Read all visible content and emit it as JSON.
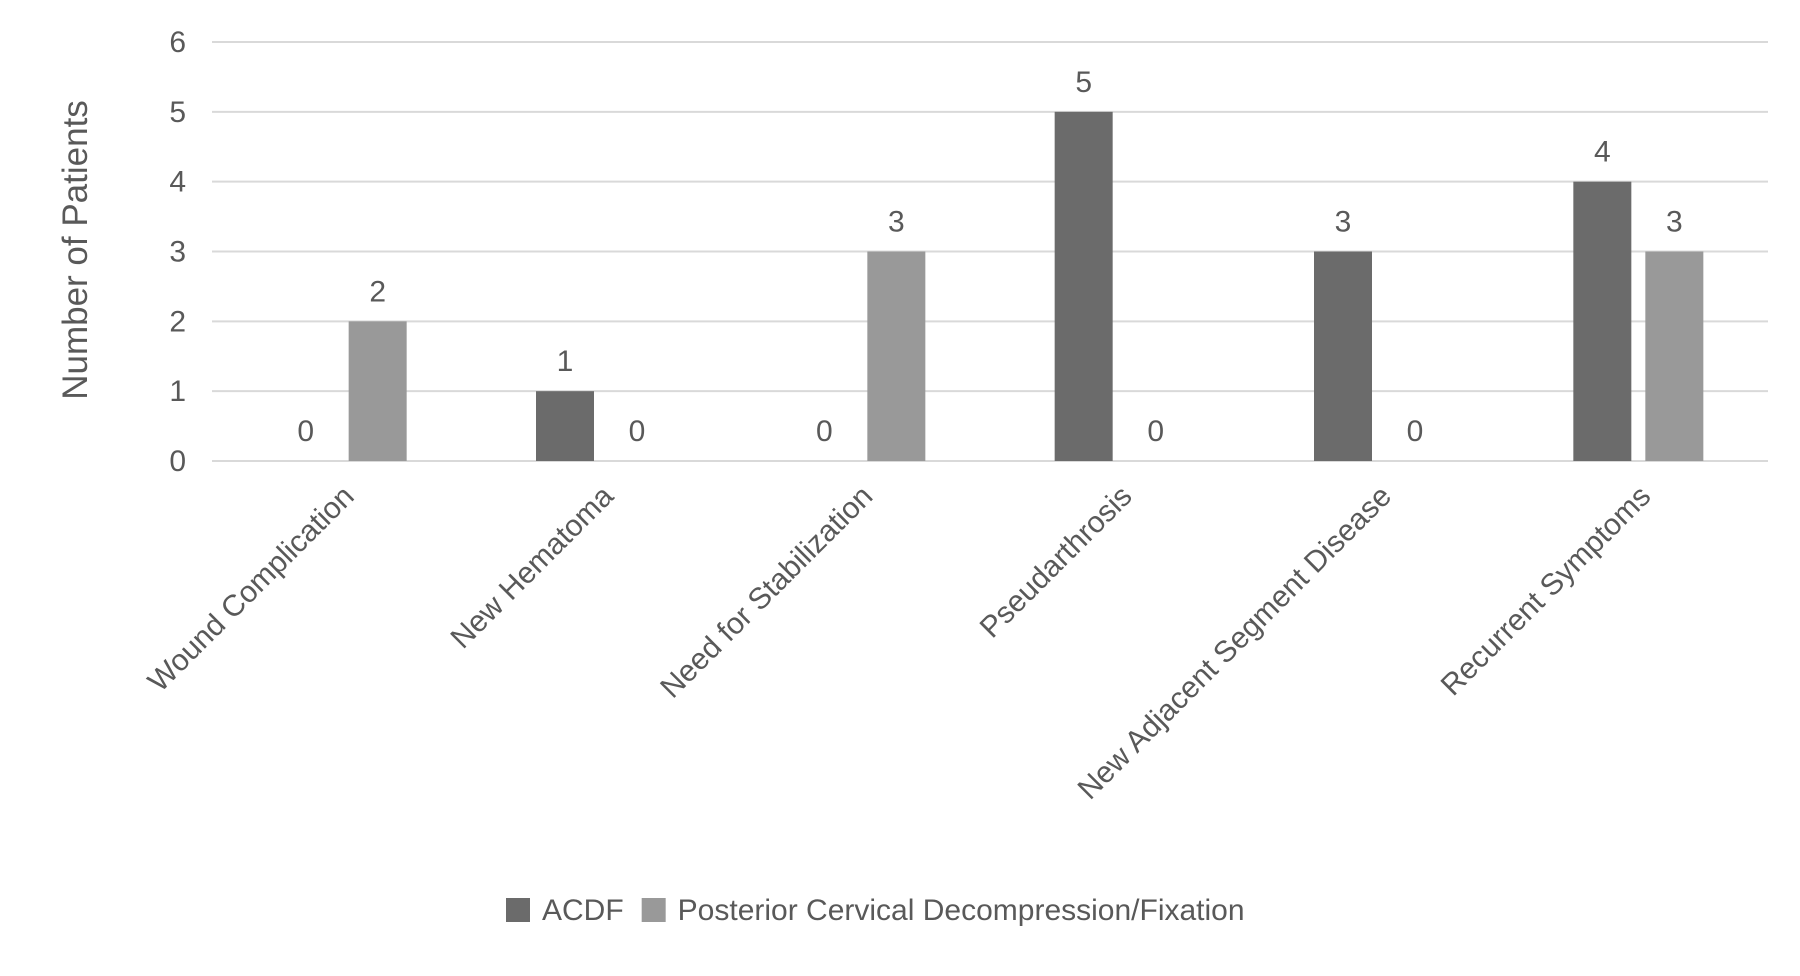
{
  "chart_data": {
    "type": "bar",
    "title": "",
    "xlabel": "",
    "ylabel": "Number of Patients",
    "ylim": [
      0,
      6
    ],
    "yticks": [
      0,
      1,
      2,
      3,
      4,
      5,
      6
    ],
    "grid": true,
    "legend_position": "bottom",
    "categories": [
      "Wound Complication",
      "New Hematoma",
      "Need for Stabilization",
      "Pseudarthrosis",
      "New Adjacent Segment Disease",
      "Recurrent Symptoms"
    ],
    "series": [
      {
        "name": "ACDF",
        "color": "#6b6b6b",
        "values": [
          0,
          1,
          0,
          5,
          3,
          4
        ]
      },
      {
        "name": "Posterior Cervical Decompression/Fixation",
        "color": "#999999",
        "values": [
          2,
          0,
          3,
          0,
          0,
          3
        ]
      }
    ]
  }
}
